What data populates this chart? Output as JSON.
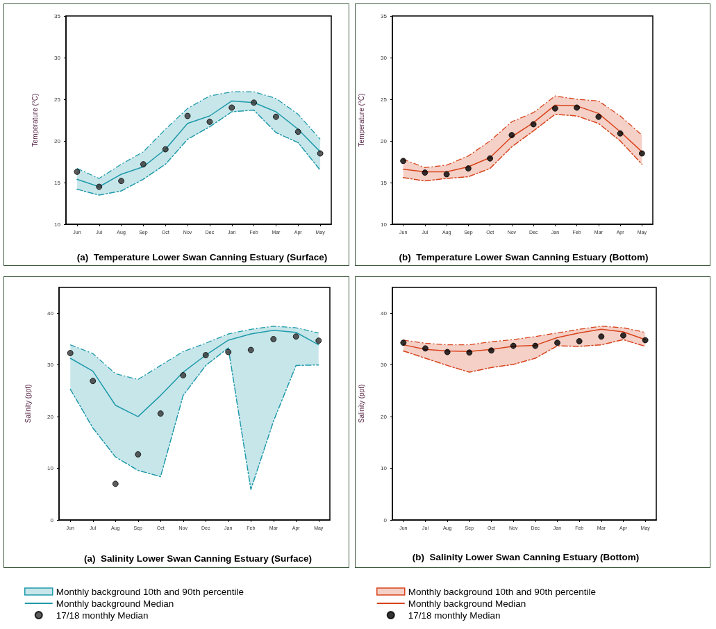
{
  "chart_data": [
    {
      "type": "line",
      "title": "(a)  Temperature Lower Swan Canning Estuary (Surface)",
      "ylabel": "Temperature (°C)",
      "categories": [
        "Jun",
        "Jul",
        "Aug",
        "Sep",
        "Oct",
        "Nov",
        "Dec",
        "Jan",
        "Feb",
        "Mar",
        "Apr",
        "May"
      ],
      "ylim": [
        10,
        35
      ],
      "yticks": [
        10,
        15,
        20,
        25,
        30,
        35
      ],
      "grid": false,
      "legend": false,
      "series": [
        {
          "type": "area",
          "color": "#1f9aaa",
          "line_style": "dashed",
          "values": [
            16.7,
            15.5,
            17.2,
            18.7,
            21.4,
            23.9,
            25.4,
            25.9,
            25.9,
            25.1,
            23.2,
            20.2
          ]
        },
        {
          "type": "line",
          "color": "#1f9aaa",
          "line_style": "dashed",
          "marker": "none",
          "values": [
            14.2,
            13.5,
            14.0,
            15.4,
            17.2,
            20.2,
            21.7,
            23.5,
            23.7,
            21.0,
            19.8,
            16.5
          ]
        },
        {
          "type": "line",
          "color": "#1f9aaa",
          "line_style": "solid",
          "marker": "none",
          "values": [
            15.4,
            14.5,
            16.0,
            16.9,
            19.0,
            22.1,
            23.0,
            24.8,
            24.6,
            23.5,
            21.4,
            18.7
          ]
        },
        {
          "type": "scatter",
          "color": "#333333",
          "marker": "circle",
          "values": [
            16.3,
            14.5,
            15.2,
            17.2,
            19.0,
            23.0,
            22.3,
            24.0,
            24.6,
            22.9,
            21.1,
            18.5
          ]
        }
      ]
    },
    {
      "type": "line",
      "title": "(b)  Temperature Lower Swan Canning Estuary (Bottom)",
      "ylabel": "Temperature (°C)",
      "categories": [
        "Jun",
        "Jul",
        "Aug",
        "Sep",
        "Oct",
        "Nov",
        "Dec",
        "Jan",
        "Feb",
        "Mar",
        "Apr",
        "May"
      ],
      "ylim": [
        10,
        35
      ],
      "yticks": [
        10,
        15,
        20,
        25,
        30,
        35
      ],
      "grid": false,
      "legend": false,
      "series": [
        {
          "type": "area",
          "color": "#d8431c",
          "line_style": "dashed",
          "values": [
            17.8,
            16.8,
            17.1,
            18.2,
            20.0,
            22.3,
            23.4,
            25.4,
            25.0,
            24.8,
            23.0,
            20.7
          ]
        },
        {
          "type": "line",
          "color": "#d8431c",
          "line_style": "dashed",
          "marker": "none",
          "values": [
            15.6,
            15.2,
            15.5,
            15.7,
            16.7,
            19.3,
            21.2,
            23.2,
            23.0,
            22.1,
            20.0,
            17.2
          ]
        },
        {
          "type": "line",
          "color": "#d8431c",
          "line_style": "solid",
          "marker": "none",
          "values": [
            16.6,
            16.3,
            16.3,
            16.9,
            18.0,
            20.5,
            22.2,
            24.3,
            24.2,
            23.3,
            21.1,
            18.7
          ]
        },
        {
          "type": "scatter",
          "color": "#000000",
          "marker": "circle",
          "values": [
            17.6,
            16.2,
            16.0,
            16.7,
            17.9,
            20.7,
            22.0,
            23.9,
            24.0,
            22.9,
            20.9,
            18.5
          ]
        }
      ]
    },
    {
      "type": "line",
      "title": "(a)  Salinity Lower Swan Canning Estuary (Surface)",
      "ylabel": "Salinity (ppt)",
      "categories": [
        "Jun",
        "Jul",
        "Aug",
        "Sep",
        "Oct",
        "Nov",
        "Dec",
        "Jan",
        "Feb",
        "Mar",
        "Apr",
        "May"
      ],
      "ylim": [
        0,
        45
      ],
      "yticks": [
        0,
        10,
        20,
        30,
        40
      ],
      "grid": false,
      "legend": "bottom",
      "series": [
        {
          "name": "Monthly background 10th and 90th percentile",
          "type": "area",
          "color": "#1f9aaa",
          "line_style": "dashed",
          "values": [
            33.9,
            32.2,
            28.3,
            27.2,
            29.9,
            32.6,
            34.2,
            36.0,
            36.9,
            37.5,
            37.2,
            36.2
          ]
        },
        {
          "type": "line",
          "color": "#1f9aaa",
          "line_style": "dashed",
          "marker": "none",
          "values": [
            25.3,
            17.8,
            12.2,
            9.6,
            8.4,
            24.1,
            29.9,
            33.3,
            5.9,
            19.1,
            29.9,
            30.0
          ]
        },
        {
          "name": "Monthly background Median",
          "type": "line",
          "color": "#1f9aaa",
          "line_style": "solid",
          "marker": "none",
          "values": [
            31.3,
            28.8,
            22.2,
            20.0,
            24.1,
            28.6,
            31.9,
            34.8,
            36.0,
            36.7,
            36.3,
            33.9
          ]
        },
        {
          "name": "17/18 monthly Median",
          "type": "scatter",
          "color": "#333333",
          "marker": "circle",
          "values": [
            32.3,
            26.9,
            7.0,
            12.7,
            20.6,
            28.0,
            31.9,
            32.5,
            32.9,
            35.0,
            35.5,
            34.7
          ]
        }
      ]
    },
    {
      "type": "line",
      "title": "(b)  Salinity Lower Swan Canning Estuary (Bottom)",
      "ylabel": "Salinity (ppt)",
      "categories": [
        "Jun",
        "Jul",
        "Aug",
        "Sep",
        "Oct",
        "Nov",
        "Dec",
        "Jan",
        "Feb",
        "Mar",
        "Apr",
        "May"
      ],
      "ylim": [
        0,
        45
      ],
      "yticks": [
        0,
        10,
        20,
        30,
        40
      ],
      "grid": false,
      "legend": "bottom",
      "series": [
        {
          "name": "Monthly background 10th and 90th percentile",
          "type": "area",
          "color": "#d8431c",
          "line_style": "dashed",
          "values": [
            34.8,
            34.2,
            33.9,
            33.9,
            34.5,
            34.9,
            35.5,
            36.2,
            36.9,
            37.5,
            37.2,
            36.3
          ]
        },
        {
          "type": "line",
          "color": "#d8431c",
          "line_style": "dashed",
          "marker": "none",
          "values": [
            32.7,
            31.3,
            29.9,
            28.6,
            29.5,
            30.1,
            31.3,
            33.7,
            33.6,
            33.9,
            34.9,
            33.6
          ]
        },
        {
          "name": "Monthly background Median",
          "type": "line",
          "color": "#d8431c",
          "line_style": "solid",
          "marker": "none",
          "values": [
            33.9,
            33.0,
            32.7,
            32.6,
            33.0,
            33.6,
            33.8,
            35.3,
            36.2,
            36.9,
            36.4,
            34.9
          ]
        },
        {
          "name": "17/18 monthly Median",
          "type": "scatter",
          "color": "#000000",
          "marker": "circle",
          "values": [
            34.3,
            33.2,
            32.5,
            32.4,
            32.8,
            33.7,
            33.7,
            34.3,
            34.6,
            35.5,
            35.7,
            34.8
          ]
        }
      ]
    }
  ]
}
